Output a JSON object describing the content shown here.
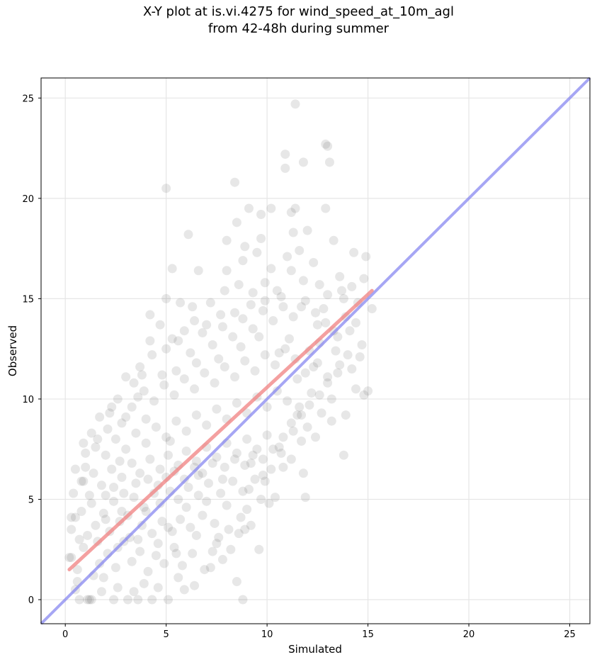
{
  "chart_data": {
    "type": "scatter",
    "title_line1": "X-Y plot at is.vi.4275 for wind_speed_at_10m_agl",
    "title_line2": "from 42-48h during summer",
    "xlabel": "Simulated",
    "ylabel": "Observed",
    "xlim": [
      -1.2,
      26.0
    ],
    "ylim": [
      -1.2,
      26.0
    ],
    "xticks": [
      0,
      5,
      10,
      15,
      20,
      25
    ],
    "yticks": [
      0,
      5,
      10,
      15,
      20,
      25
    ],
    "grid": true,
    "point_color": "#555555",
    "point_opacity": 0.14,
    "points": [
      [
        1.2,
        0
      ],
      [
        1.3,
        0
      ],
      [
        1.1,
        0
      ],
      [
        0.7,
        0
      ],
      [
        2.4,
        0
      ],
      [
        3.1,
        0
      ],
      [
        3.6,
        0
      ],
      [
        4.3,
        0
      ],
      [
        5.1,
        0
      ],
      [
        8.8,
        0
      ],
      [
        0.5,
        0.5
      ],
      [
        1.8,
        0.4
      ],
      [
        2.6,
        0.6
      ],
      [
        3.9,
        0.8
      ],
      [
        4.6,
        0.6
      ],
      [
        5.9,
        0.5
      ],
      [
        6.4,
        0.7
      ],
      [
        8.5,
        0.9
      ],
      [
        0.3,
        2.1
      ],
      [
        0.6,
        1.5
      ],
      [
        0.9,
        2.6
      ],
      [
        1.4,
        1.2
      ],
      [
        1.7,
        1.8
      ],
      [
        2.1,
        2.3
      ],
      [
        2.5,
        1.6
      ],
      [
        2.9,
        2.9
      ],
      [
        3.3,
        1.9
      ],
      [
        3.7,
        2.4
      ],
      [
        4.1,
        1.4
      ],
      [
        4.5,
        2.2
      ],
      [
        4.9,
        1.8
      ],
      [
        5.4,
        2.6
      ],
      [
        5.8,
        1.7
      ],
      [
        6.3,
        2.3
      ],
      [
        6.9,
        1.5
      ],
      [
        7.5,
        2.8
      ],
      [
        8.2,
        2.5
      ],
      [
        9.6,
        2.5
      ],
      [
        7.8,
        2.0
      ],
      [
        1.1,
        3.2
      ],
      [
        1.6,
        2.9
      ],
      [
        2.2,
        3.4
      ],
      [
        2.7,
        3.9
      ],
      [
        3.2,
        3.1
      ],
      [
        3.8,
        3.7
      ],
      [
        4.3,
        3.3
      ],
      [
        4.8,
        3.9
      ],
      [
        5.3,
        3.4
      ],
      [
        5.7,
        4.0
      ],
      [
        6.2,
        3.6
      ],
      [
        6.8,
        4.2
      ],
      [
        7.4,
        3.8
      ],
      [
        8.1,
        3.5
      ],
      [
        8.7,
        4.1
      ],
      [
        9.2,
        3.7
      ],
      [
        8.9,
        3.5
      ],
      [
        0.3,
        3.5
      ],
      [
        0.5,
        4.1
      ],
      [
        0.8,
        4.4
      ],
      [
        1.3,
        4.8
      ],
      [
        1.9,
        4.3
      ],
      [
        2.4,
        4.9
      ],
      [
        2.8,
        4.4
      ],
      [
        3.4,
        5.1
      ],
      [
        3.9,
        4.6
      ],
      [
        4.4,
        5.3
      ],
      [
        4.7,
        4.8
      ],
      [
        5.2,
        5.4
      ],
      [
        5.6,
        5.0
      ],
      [
        6.1,
        5.6
      ],
      [
        6.6,
        5.2
      ],
      [
        7.1,
        5.8
      ],
      [
        7.7,
        5.3
      ],
      [
        8.3,
        5.9
      ],
      [
        8.8,
        5.4
      ],
      [
        9.4,
        6.0
      ],
      [
        9.9,
        5.9
      ],
      [
        10.1,
        4.8
      ],
      [
        0.4,
        5.3
      ],
      [
        0.9,
        5.9
      ],
      [
        1.4,
        6.3
      ],
      [
        1.8,
        5.7
      ],
      [
        2.3,
        6.5
      ],
      [
        2.8,
        6.1
      ],
      [
        3.3,
        6.8
      ],
      [
        3.7,
        6.3
      ],
      [
        4.2,
        7.0
      ],
      [
        4.7,
        6.5
      ],
      [
        5.1,
        7.2
      ],
      [
        5.6,
        6.7
      ],
      [
        6.0,
        7.4
      ],
      [
        6.5,
        6.9
      ],
      [
        7.0,
        7.6
      ],
      [
        7.5,
        7.1
      ],
      [
        8.0,
        7.8
      ],
      [
        8.5,
        7.3
      ],
      [
        9.0,
        8.0
      ],
      [
        9.5,
        7.5
      ],
      [
        10.0,
        8.2
      ],
      [
        10.6,
        7.6
      ],
      [
        11.2,
        7.0
      ],
      [
        11.8,
        6.3
      ],
      [
        11.9,
        5.1
      ],
      [
        0.5,
        6.5
      ],
      [
        1.0,
        6.6
      ],
      [
        1.5,
        7.6
      ],
      [
        2.0,
        7.2
      ],
      [
        2.5,
        8.0
      ],
      [
        3.0,
        7.5
      ],
      [
        3.5,
        8.3
      ],
      [
        4.0,
        7.8
      ],
      [
        4.5,
        8.6
      ],
      [
        5.0,
        8.1
      ],
      [
        5.5,
        8.9
      ],
      [
        6.0,
        8.4
      ],
      [
        6.5,
        9.2
      ],
      [
        7.0,
        8.7
      ],
      [
        7.5,
        9.5
      ],
      [
        8.0,
        9.0
      ],
      [
        8.5,
        9.8
      ],
      [
        9.0,
        9.3
      ],
      [
        9.5,
        10.1
      ],
      [
        10.0,
        9.6
      ],
      [
        10.5,
        10.4
      ],
      [
        11.0,
        9.9
      ],
      [
        11.5,
        9.2
      ],
      [
        12.0,
        8.6
      ],
      [
        12.7,
        9.3
      ],
      [
        13.2,
        8.9
      ],
      [
        13.9,
        9.2
      ],
      [
        2.2,
        9.3
      ],
      [
        2.8,
        8.8
      ],
      [
        3.3,
        9.6
      ],
      [
        3.9,
        10.4
      ],
      [
        4.4,
        9.9
      ],
      [
        4.9,
        10.7
      ],
      [
        5.4,
        10.2
      ],
      [
        5.9,
        11.0
      ],
      [
        6.4,
        10.5
      ],
      [
        6.9,
        11.3
      ],
      [
        7.4,
        10.8
      ],
      [
        7.9,
        11.6
      ],
      [
        8.4,
        11.1
      ],
      [
        8.9,
        11.9
      ],
      [
        9.4,
        11.4
      ],
      [
        9.9,
        12.2
      ],
      [
        10.4,
        11.7
      ],
      [
        10.9,
        12.5
      ],
      [
        11.4,
        12.0
      ],
      [
        11.9,
        11.3
      ],
      [
        12.5,
        11.8
      ],
      [
        13.0,
        11.1
      ],
      [
        13.6,
        11.7
      ],
      [
        14.4,
        10.5
      ],
      [
        14.8,
        10.2
      ],
      [
        15.0,
        10.4
      ],
      [
        3.0,
        11.1
      ],
      [
        3.7,
        11.6
      ],
      [
        4.3,
        12.2
      ],
      [
        5.0,
        12.5
      ],
      [
        5.6,
        12.9
      ],
      [
        6.2,
        12.3
      ],
      [
        6.8,
        13.3
      ],
      [
        7.3,
        12.7
      ],
      [
        7.8,
        13.6
      ],
      [
        8.3,
        13.1
      ],
      [
        8.8,
        14.0
      ],
      [
        9.3,
        13.5
      ],
      [
        9.8,
        14.4
      ],
      [
        10.3,
        13.9
      ],
      [
        10.8,
        14.6
      ],
      [
        11.3,
        14.1
      ],
      [
        11.9,
        14.9
      ],
      [
        12.4,
        14.3
      ],
      [
        12.9,
        13.8
      ],
      [
        13.5,
        13.1
      ],
      [
        14.1,
        13.4
      ],
      [
        14.7,
        12.7
      ],
      [
        4.2,
        14.2
      ],
      [
        5.0,
        15.0
      ],
      [
        5.7,
        14.8
      ],
      [
        6.3,
        14.6
      ],
      [
        7.2,
        14.8
      ],
      [
        7.9,
        15.4
      ],
      [
        8.6,
        15.7
      ],
      [
        9.3,
        15.3
      ],
      [
        9.9,
        15.8
      ],
      [
        10.5,
        15.4
      ],
      [
        11.2,
        16.4
      ],
      [
        11.8,
        15.9
      ],
      [
        12.3,
        16.8
      ],
      [
        13.0,
        15.2
      ],
      [
        13.7,
        15.4
      ],
      [
        14.2,
        15.6
      ],
      [
        14.8,
        16.0
      ],
      [
        14.9,
        17.1
      ],
      [
        8.0,
        16.4
      ],
      [
        8.8,
        16.9
      ],
      [
        9.5,
        17.3
      ],
      [
        10.2,
        16.5
      ],
      [
        11.0,
        17.1
      ],
      [
        11.6,
        17.4
      ],
      [
        12.0,
        18.4
      ],
      [
        14.3,
        17.3
      ],
      [
        8.0,
        17.9
      ],
      [
        8.9,
        17.6
      ],
      [
        9.7,
        18.0
      ],
      [
        11.3,
        18.3
      ],
      [
        13.3,
        17.9
      ],
      [
        9.1,
        19.5
      ],
      [
        9.7,
        19.2
      ],
      [
        10.2,
        19.5
      ],
      [
        11.2,
        19.3
      ],
      [
        11.4,
        19.5
      ],
      [
        12.9,
        19.5
      ],
      [
        8.5,
        18.8
      ],
      [
        6.1,
        18.2
      ],
      [
        5.0,
        20.5
      ],
      [
        8.4,
        20.8
      ],
      [
        10.9,
        21.5
      ],
      [
        11.8,
        21.8
      ],
      [
        13.1,
        21.8
      ],
      [
        10.9,
        22.2
      ],
      [
        12.9,
        22.7
      ],
      [
        13.0,
        22.6
      ],
      [
        11.4,
        24.7
      ],
      [
        6.6,
        16.4
      ],
      [
        5.3,
        16.5
      ],
      [
        0.3,
        4.1
      ],
      [
        0.2,
        2.1
      ],
      [
        0.6,
        0.9
      ],
      [
        12.5,
        13.7
      ],
      [
        12.8,
        14.5
      ],
      [
        13.9,
        14.1
      ],
      [
        12.1,
        12.4
      ],
      [
        11.5,
        11.0
      ],
      [
        13.2,
        10.0
      ],
      [
        13.8,
        7.2
      ],
      [
        12.4,
        8.1
      ],
      [
        10.8,
        6.6
      ],
      [
        9.8,
        6.2
      ],
      [
        9.2,
        6.8
      ],
      [
        7.8,
        6.0
      ],
      [
        6.6,
        6.2
      ],
      [
        5.2,
        7.9
      ],
      [
        4.0,
        9.0
      ],
      [
        2.7,
        6.9
      ],
      [
        1.2,
        5.2
      ],
      [
        0.7,
        3.0
      ],
      [
        1.9,
        1.1
      ],
      [
        3.4,
        0.4
      ],
      [
        5.6,
        1.1
      ],
      [
        7.2,
        1.6
      ],
      [
        7.6,
        3.1
      ],
      [
        9.0,
        4.5
      ],
      [
        10.4,
        5.1
      ],
      [
        11.7,
        7.9
      ],
      [
        12.2,
        10.3
      ],
      [
        13.4,
        12.4
      ],
      [
        14.5,
        14.8
      ],
      [
        15.2,
        14.5
      ],
      [
        13.6,
        16.1
      ],
      [
        11.1,
        13.0
      ],
      [
        10.6,
        12.3
      ],
      [
        9.6,
        13.1
      ],
      [
        8.7,
        12.6
      ],
      [
        7.6,
        12.0
      ],
      [
        6.5,
        11.8
      ],
      [
        5.5,
        11.4
      ],
      [
        4.8,
        11.2
      ],
      [
        3.6,
        10.1
      ],
      [
        3.0,
        9.1
      ],
      [
        2.1,
        8.5
      ],
      [
        1.6,
        8.0
      ],
      [
        1.0,
        7.3
      ],
      [
        0.8,
        5.9
      ],
      [
        1.5,
        3.7
      ],
      [
        2.0,
        4.0
      ],
      [
        2.6,
        2.6
      ],
      [
        3.1,
        4.2
      ],
      [
        3.6,
        3.0
      ],
      [
        4.0,
        4.4
      ],
      [
        4.6,
        2.8
      ],
      [
        5.1,
        3.6
      ],
      [
        5.5,
        2.3
      ],
      [
        6.0,
        4.6
      ],
      [
        6.5,
        3.2
      ],
      [
        7.0,
        4.9
      ],
      [
        7.3,
        2.4
      ],
      [
        8.0,
        4.7
      ],
      [
        8.6,
        3.3
      ],
      [
        9.1,
        5.5
      ],
      [
        9.7,
        5.0
      ],
      [
        10.2,
        6.5
      ],
      [
        10.7,
        7.3
      ],
      [
        11.3,
        8.4
      ],
      [
        11.6,
        9.6
      ],
      [
        12.3,
        11.6
      ],
      [
        12.6,
        12.8
      ],
      [
        13.3,
        13.4
      ],
      [
        14.0,
        12.2
      ],
      [
        14.4,
        13.8
      ],
      [
        13.8,
        15.0
      ],
      [
        12.6,
        15.7
      ],
      [
        11.7,
        14.6
      ],
      [
        10.7,
        15.1
      ],
      [
        9.9,
        14.9
      ],
      [
        9.2,
        14.7
      ],
      [
        8.4,
        14.3
      ],
      [
        7.7,
        14.2
      ],
      [
        7.0,
        13.7
      ],
      [
        6.4,
        13.9
      ],
      [
        5.9,
        13.4
      ],
      [
        5.3,
        13.0
      ],
      [
        4.7,
        13.7
      ],
      [
        4.2,
        12.9
      ],
      [
        3.8,
        11.2
      ],
      [
        3.4,
        10.8
      ],
      [
        2.6,
        10.0
      ],
      [
        2.3,
        9.6
      ],
      [
        1.7,
        9.1
      ],
      [
        1.3,
        8.3
      ],
      [
        0.9,
        7.8
      ],
      [
        2.0,
        5.2
      ],
      [
        2.4,
        5.6
      ],
      [
        2.9,
        5.3
      ],
      [
        3.5,
        5.8
      ],
      [
        4.1,
        6.0
      ],
      [
        4.6,
        5.7
      ],
      [
        5.0,
        6.1
      ],
      [
        5.4,
        6.4
      ],
      [
        5.9,
        6.0
      ],
      [
        6.4,
        6.6
      ],
      [
        6.8,
        6.3
      ],
      [
        7.3,
        6.8
      ],
      [
        7.9,
        6.6
      ],
      [
        8.4,
        7.0
      ],
      [
        8.9,
        6.7
      ],
      [
        9.3,
        7.2
      ],
      [
        9.8,
        7.0
      ],
      [
        10.3,
        7.5
      ],
      [
        10.8,
        8.1
      ],
      [
        11.2,
        8.8
      ],
      [
        11.7,
        9.2
      ],
      [
        12.1,
        9.7
      ],
      [
        12.6,
        10.2
      ],
      [
        13.0,
        10.8
      ],
      [
        13.5,
        11.3
      ],
      [
        14.2,
        11.5
      ],
      [
        14.6,
        12.1
      ]
    ],
    "regression_line": {
      "x": [
        0.2,
        15.2
      ],
      "y": [
        1.5,
        15.4
      ],
      "color": "#f08080"
    },
    "identity_line": {
      "x": [
        -1.2,
        26.0
      ],
      "y": [
        -1.2,
        26.0
      ],
      "color": "#8080f0"
    }
  }
}
